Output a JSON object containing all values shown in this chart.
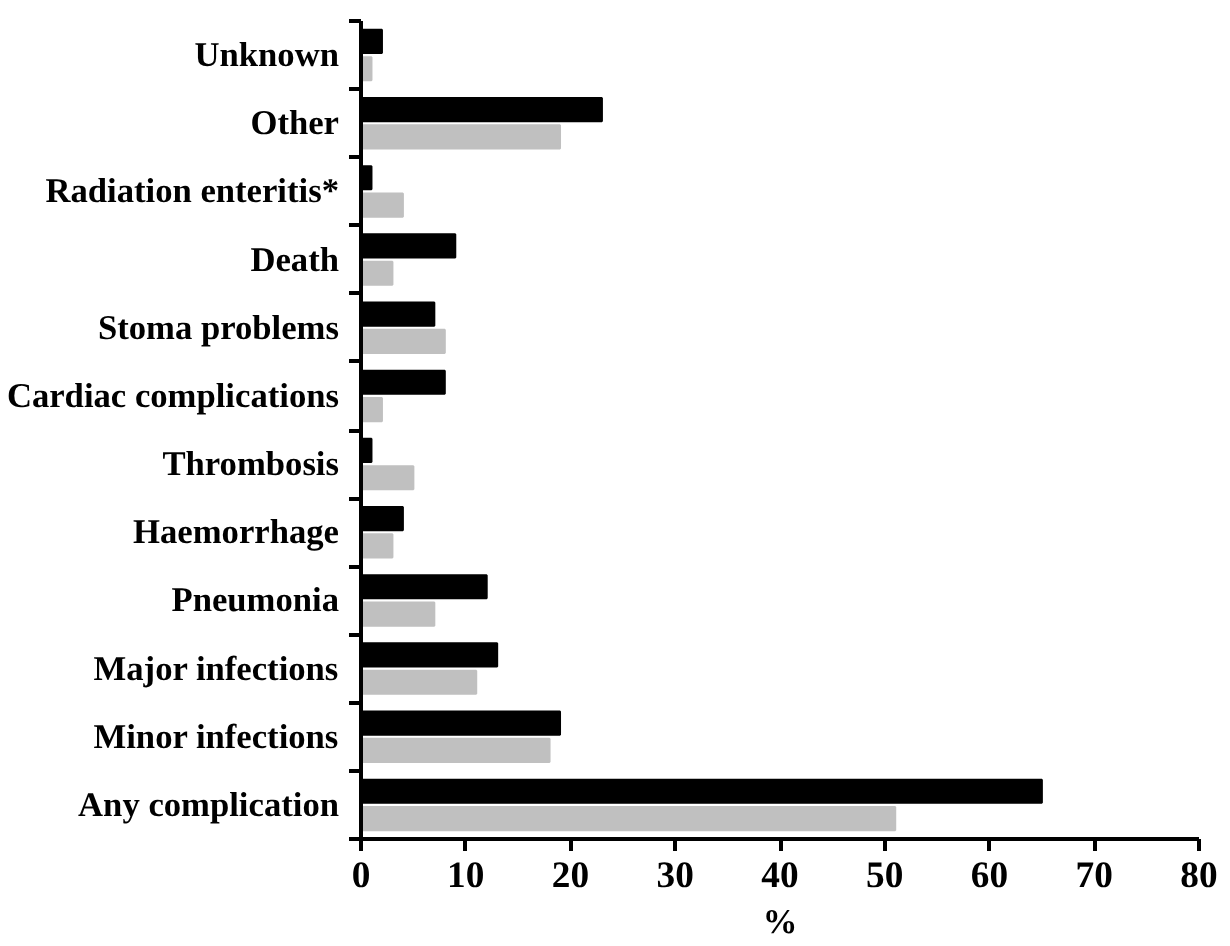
{
  "chart_data": {
    "type": "bar",
    "orientation": "horizontal",
    "xlabel": "%",
    "categories": [
      "Unknown",
      "Other",
      "Radiation enteritis*",
      "Death",
      "Stoma problems",
      "Cardiac complications",
      "Thrombosis",
      "Haemorrhage",
      "Pneumonia",
      "Major infections",
      "Minor infections",
      "Any complication"
    ],
    "series": [
      {
        "color": "#000000",
        "values": [
          2,
          23,
          1,
          9,
          7,
          8,
          1,
          4,
          12,
          13,
          19,
          65
        ]
      },
      {
        "color": "#c0c0c0",
        "values": [
          1,
          19,
          4,
          3,
          8,
          2,
          5,
          3,
          7,
          11,
          18,
          51
        ]
      }
    ],
    "xlim": [
      0,
      80
    ],
    "xticks": [
      0,
      10,
      20,
      30,
      40,
      50,
      60,
      70,
      80
    ],
    "grid": false
  }
}
